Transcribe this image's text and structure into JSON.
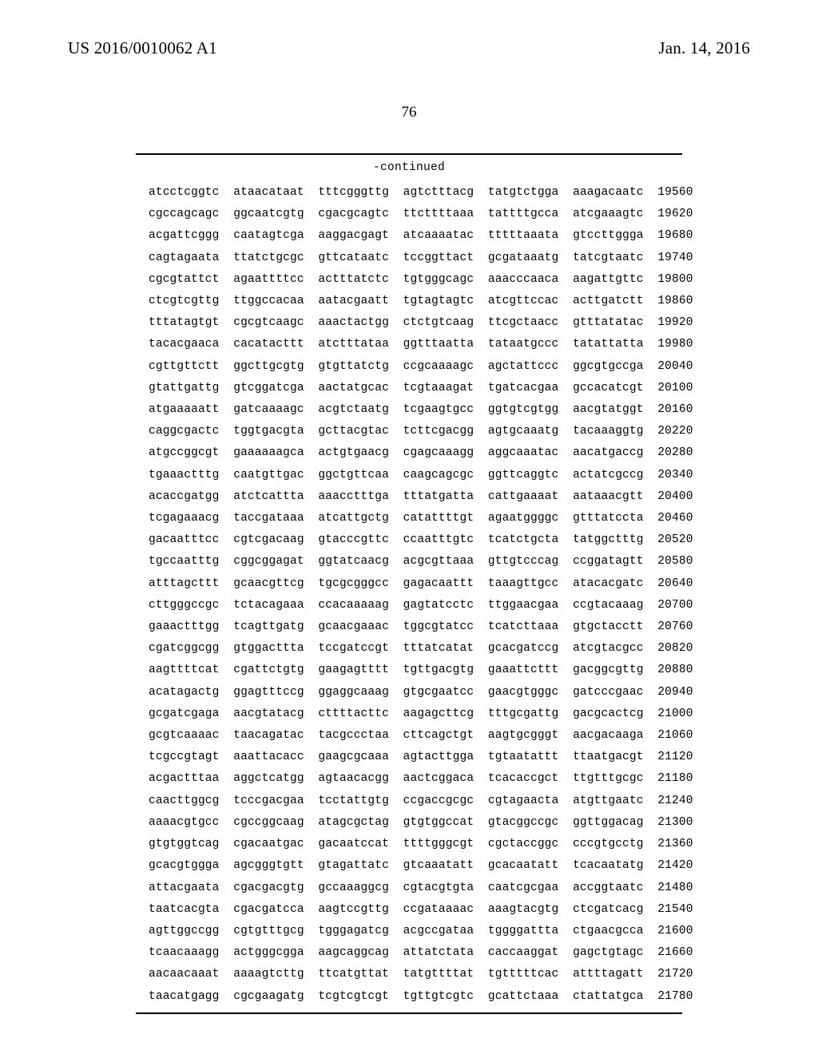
{
  "header": {
    "pub_number": "US 2016/0010062 A1",
    "pub_date": "Jan. 14, 2016",
    "page_number": "76",
    "continued_label": "-continued"
  },
  "sequence": {
    "block_gap": "  ",
    "num_gap": "  ",
    "rows": [
      {
        "blocks": [
          "atcctcggtc",
          "ataacataat",
          "tttcgggttg",
          "agtctttacg",
          "tatgtctgga",
          "aaagacaatc"
        ],
        "pos": "19560"
      },
      {
        "blocks": [
          "cgccagcagc",
          "ggcaatcgtg",
          "cgacgcagtc",
          "ttcttttaaa",
          "tattttgcca",
          "atcgaaagtc"
        ],
        "pos": "19620"
      },
      {
        "blocks": [
          "acgattcggg",
          "caatagtcga",
          "aaggacgagt",
          "atcaaaatac",
          "tttttaaata",
          "gtccttggga"
        ],
        "pos": "19680"
      },
      {
        "blocks": [
          "cagtagaata",
          "ttatctgcgc",
          "gttcataatc",
          "tccggttact",
          "gcgataaatg",
          "tatcgtaatc"
        ],
        "pos": "19740"
      },
      {
        "blocks": [
          "cgcgtattct",
          "agaattttcc",
          "actttatctc",
          "tgtgggcagc",
          "aaacccaaca",
          "aagattgttc"
        ],
        "pos": "19800"
      },
      {
        "blocks": [
          "ctcgtcgttg",
          "ttggccacaa",
          "aatacgaatt",
          "tgtagtagtc",
          "atcgttccac",
          "acttgatctt"
        ],
        "pos": "19860"
      },
      {
        "blocks": [
          "tttatagtgt",
          "cgcgtcaagc",
          "aaactactgg",
          "ctctgtcaag",
          "ttcgctaacc",
          "gtttatatac"
        ],
        "pos": "19920"
      },
      {
        "blocks": [
          "tacacgaaca",
          "cacatacttt",
          "atctttataa",
          "ggtttaatta",
          "tataatgccc",
          "tatattatta"
        ],
        "pos": "19980"
      },
      {
        "blocks": [
          "cgttgttctt",
          "ggcttgcgtg",
          "gtgttatctg",
          "ccgcaaaagc",
          "agctattccc",
          "ggcgtgccga"
        ],
        "pos": "20040"
      },
      {
        "blocks": [
          "gtattgattg",
          "gtcggatcga",
          "aactatgcac",
          "tcgtaaagat",
          "tgatcacgaa",
          "gccacatcgt"
        ],
        "pos": "20100"
      },
      {
        "blocks": [
          "atgaaaaatt",
          "gatcaaaagc",
          "acgtctaatg",
          "tcgaagtgcc",
          "ggtgtcgtgg",
          "aacgtatggt"
        ],
        "pos": "20160"
      },
      {
        "blocks": [
          "caggcgactc",
          "tggtgacgta",
          "gcttacgtac",
          "tcttcgacgg",
          "agtgcaaatg",
          "tacaaaggtg"
        ],
        "pos": "20220"
      },
      {
        "blocks": [
          "atgccggcgt",
          "gaaaaaagca",
          "actgtgaacg",
          "cgagcaaagg",
          "aggcaaatac",
          "aacatgaccg"
        ],
        "pos": "20280"
      },
      {
        "blocks": [
          "tgaaactttg",
          "caatgttgac",
          "ggctgttcaa",
          "caagcagcgc",
          "ggttcaggtc",
          "actatcgccg"
        ],
        "pos": "20340"
      },
      {
        "blocks": [
          "acaccgatgg",
          "atctcattta",
          "aaacctttga",
          "tttatgatta",
          "cattgaaaat",
          "aataaacgtt"
        ],
        "pos": "20400"
      },
      {
        "blocks": [
          "tcgagaaacg",
          "taccgataaa",
          "atcattgctg",
          "catattttgt",
          "agaatggggc",
          "gtttatccta"
        ],
        "pos": "20460"
      },
      {
        "blocks": [
          "gacaatttcc",
          "cgtcgacaag",
          "gtacccgttc",
          "ccaatttgtc",
          "tcatctgcta",
          "tatggctttg"
        ],
        "pos": "20520"
      },
      {
        "blocks": [
          "tgccaatttg",
          "cggcggagat",
          "ggtatcaacg",
          "acgcgttaaa",
          "gttgtcccag",
          "ccggatagtt"
        ],
        "pos": "20580"
      },
      {
        "blocks": [
          "atttagcttt",
          "gcaacgttcg",
          "tgcgcgggcc",
          "gagacaattt",
          "taaagttgcc",
          "atacacgatc"
        ],
        "pos": "20640"
      },
      {
        "blocks": [
          "cttgggccgc",
          "tctacagaaa",
          "ccacaaaaag",
          "gagtatcctc",
          "ttggaacgaa",
          "ccgtacaaag"
        ],
        "pos": "20700"
      },
      {
        "blocks": [
          "gaaactttgg",
          "tcagttgatg",
          "gcaacgaaac",
          "tggcgtatcc",
          "tcatcttaaa",
          "gtgctacctt"
        ],
        "pos": "20760"
      },
      {
        "blocks": [
          "cgatcggcgg",
          "gtggacttta",
          "tccgatccgt",
          "tttatcatat",
          "gcacgatccg",
          "atcgtacgcc"
        ],
        "pos": "20820"
      },
      {
        "blocks": [
          "aagttttcat",
          "cgattctgtg",
          "gaagagtttt",
          "tgttgacgtg",
          "gaaattcttt",
          "gacggcgttg"
        ],
        "pos": "20880"
      },
      {
        "blocks": [
          "acatagactg",
          "ggagtttccg",
          "ggaggcaaag",
          "gtgcgaatcc",
          "gaacgtgggc",
          "gatcccgaac"
        ],
        "pos": "20940"
      },
      {
        "blocks": [
          "gcgatcgaga",
          "aacgtatacg",
          "cttttacttc",
          "aagagcttcg",
          "tttgcgattg",
          "gacgcactcg"
        ],
        "pos": "21000"
      },
      {
        "blocks": [
          "gcgtcaaaac",
          "taacagatac",
          "tacgccctaa",
          "cttcagctgt",
          "aagtgcgggt",
          "aacgacaaga"
        ],
        "pos": "21060"
      },
      {
        "blocks": [
          "tcgccgtagt",
          "aaattacacc",
          "gaagcgcaaa",
          "agtacttgga",
          "tgtaatattt",
          "ttaatgacgt"
        ],
        "pos": "21120"
      },
      {
        "blocks": [
          "acgactttaa",
          "aggctcatgg",
          "agtaacacgg",
          "aactcggaca",
          "tcacaccgct",
          "ttgtttgcgc"
        ],
        "pos": "21180"
      },
      {
        "blocks": [
          "caacttggcg",
          "tcccgacgaa",
          "tcctattgtg",
          "ccgaccgcgc",
          "cgtagaacta",
          "atgttgaatc"
        ],
        "pos": "21240"
      },
      {
        "blocks": [
          "aaaacgtgcc",
          "cgccggcaag",
          "atagcgctag",
          "gtgtggccat",
          "gtacggccgc",
          "ggttggacag"
        ],
        "pos": "21300"
      },
      {
        "blocks": [
          "gtgtggtcag",
          "cgacaatgac",
          "gacaatccat",
          "ttttgggcgt",
          "cgctaccggc",
          "cccgtgcctg"
        ],
        "pos": "21360"
      },
      {
        "blocks": [
          "gcacgtggga",
          "agcgggtgtt",
          "gtagattatc",
          "gtcaaatatt",
          "gcacaatatt",
          "tcacaatatg"
        ],
        "pos": "21420"
      },
      {
        "blocks": [
          "attacgaata",
          "cgacgacgtg",
          "gccaaaggcg",
          "cgtacgtgta",
          "caatcgcgaa",
          "accggtaatc"
        ],
        "pos": "21480"
      },
      {
        "blocks": [
          "taatcacgta",
          "cgacgatcca",
          "aagtccgttg",
          "ccgataaaac",
          "aaagtacgtg",
          "ctcgatcacg"
        ],
        "pos": "21540"
      },
      {
        "blocks": [
          "agttggccgg",
          "cgtgtttgcg",
          "tgggagatcg",
          "acgccgataa",
          "tggggattta",
          "ctgaacgcca"
        ],
        "pos": "21600"
      },
      {
        "blocks": [
          "tcaacaaagg",
          "actgggcgga",
          "aagcaggcag",
          "attatctata",
          "caccaaggat",
          "gagctgtagc"
        ],
        "pos": "21660"
      },
      {
        "blocks": [
          "aacaacaaat",
          "aaaagtcttg",
          "ttcatgttat",
          "tatgttttat",
          "tgtttttcac",
          "attttagatt"
        ],
        "pos": "21720"
      },
      {
        "blocks": [
          "taacatgagg",
          "cgcgaagatg",
          "tcgtcgtcgt",
          "tgttgtcgtc",
          "gcattctaaa",
          "ctattatgca"
        ],
        "pos": "21780"
      }
    ]
  }
}
